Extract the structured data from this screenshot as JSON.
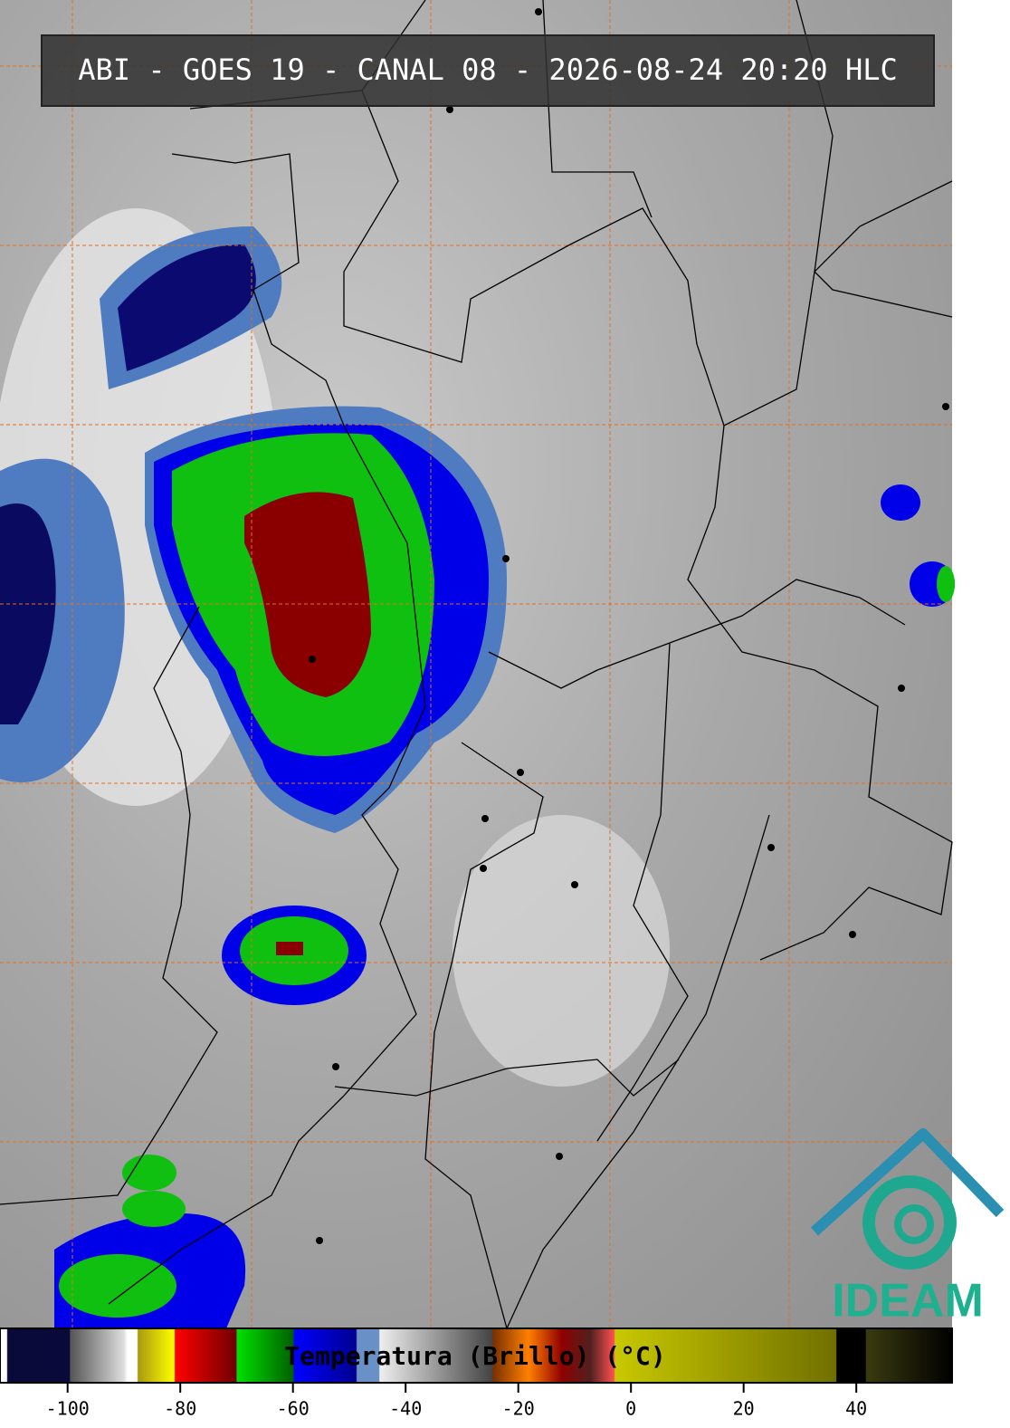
{
  "header": {
    "title": "ABI - GOES 19 - CANAL 08 - 2026-08-24 20:20 HLC"
  },
  "colorbar": {
    "label": "Temperatura (Brillo) (°C)",
    "xlim": [
      -112,
      57
    ],
    "xticks": [
      -100,
      -80,
      -60,
      -40,
      -20,
      0,
      20,
      40
    ]
  },
  "logo": {
    "text": "IDEAM"
  }
}
